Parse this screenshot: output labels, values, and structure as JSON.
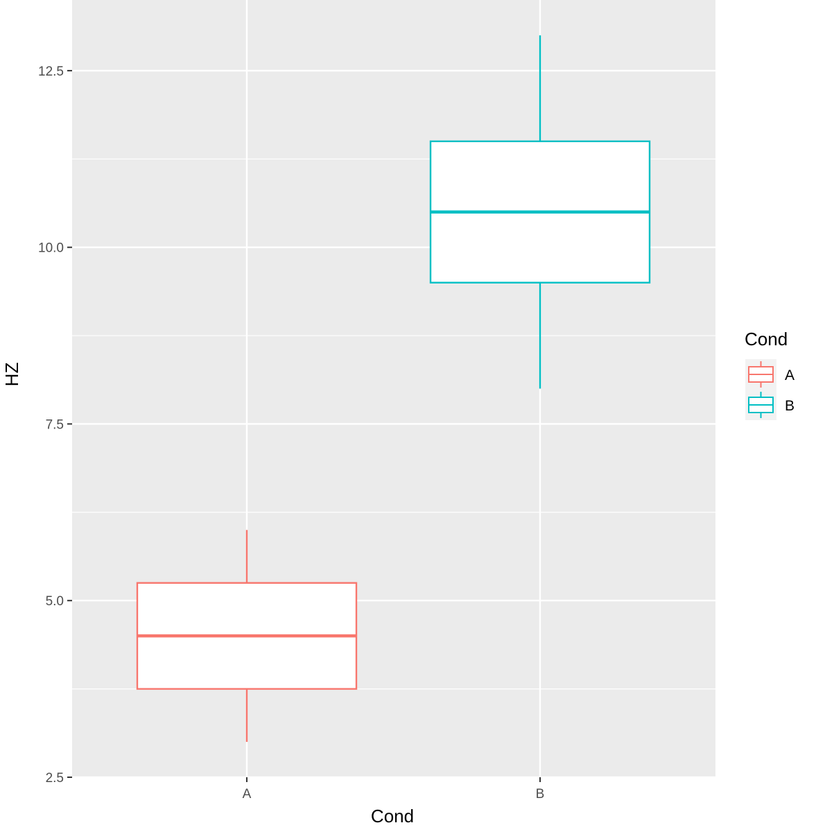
{
  "chart_data": {
    "type": "boxplot",
    "title": "",
    "xlabel": "Cond",
    "ylabel": "HZ",
    "ylim": [
      2.5,
      13.5
    ],
    "yticks": [
      "2.5",
      "5.0",
      "7.5",
      "10.0",
      "12.5"
    ],
    "ytick_values": [
      2.5,
      5.0,
      7.5,
      10.0,
      12.5
    ],
    "ygrid_minor": [
      3.75,
      6.25,
      8.75,
      11.25
    ],
    "grid": true,
    "categories": [
      "A",
      "B"
    ],
    "series": [
      {
        "name": "A",
        "color": "#F8766D",
        "min": 3.0,
        "q1": 3.75,
        "median": 4.5,
        "q3": 5.25,
        "max": 6.0
      },
      {
        "name": "B",
        "color": "#00BFC4",
        "min": 8.0,
        "q1": 9.5,
        "median": 10.5,
        "q3": 11.5,
        "max": 13.0
      }
    ],
    "legend": {
      "title": "Cond",
      "position": "right",
      "entries": [
        "A",
        "B"
      ]
    }
  },
  "colors": {
    "panel_background": "#EBEBEB",
    "grid_line": "#FFFFFF",
    "tick_text": "#4D4D4D",
    "box_fill": "#FFFFFF"
  }
}
